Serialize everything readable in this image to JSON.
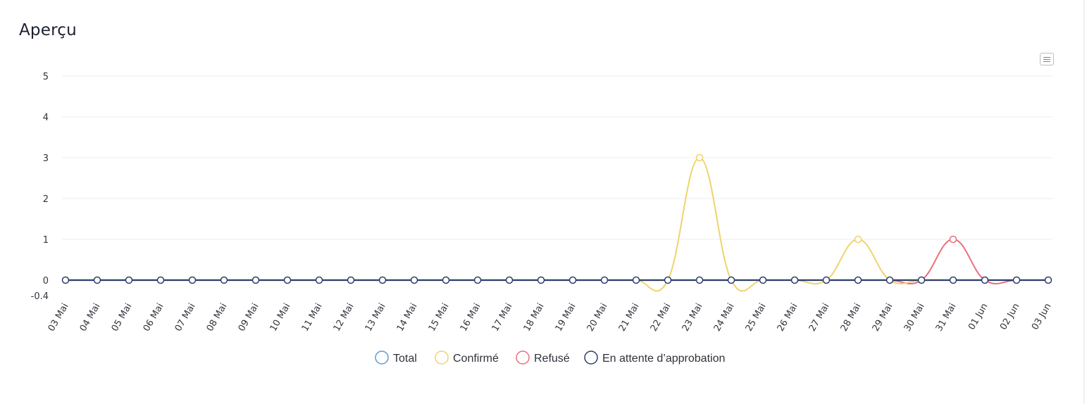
{
  "header": {
    "title": "Aperçu",
    "menu_icon": "hamburger-menu-icon"
  },
  "chart_data": {
    "type": "line",
    "smooth": true,
    "x": [
      "03 Mai",
      "04 Mai",
      "05 Mai",
      "06 Mai",
      "07 Mai",
      "08 Mai",
      "09 Mai",
      "10 Mai",
      "11 Mai",
      "12 Mai",
      "13 Mai",
      "14 Mai",
      "15 Mai",
      "16 Mai",
      "17 Mai",
      "18 Mai",
      "19 Mai",
      "20 Mai",
      "21 Mai",
      "22 Mai",
      "23 Mai",
      "24 Mai",
      "25 Mai",
      "26 Mai",
      "27 Mai",
      "28 Mai",
      "29 Mai",
      "30 Mai",
      "31 Mai",
      "01 Jun",
      "02 Jun",
      "03 Jun"
    ],
    "series": [
      {
        "name": "Total",
        "color": "#5b9bd5",
        "values": [
          0,
          0,
          0,
          0,
          0,
          0,
          0,
          0,
          0,
          0,
          0,
          0,
          0,
          0,
          0,
          0,
          0,
          0,
          0,
          0,
          0,
          0,
          0,
          0,
          0,
          0,
          0,
          0,
          0,
          0,
          0,
          0
        ]
      },
      {
        "name": "Confirmé",
        "color": "#f0d36a",
        "values": [
          0,
          0,
          0,
          0,
          0,
          0,
          0,
          0,
          0,
          0,
          0,
          0,
          0,
          0,
          0,
          0,
          0,
          0,
          0,
          0,
          3,
          0,
          0,
          0,
          0,
          1,
          0,
          0,
          0,
          0,
          0,
          0
        ]
      },
      {
        "name": "Refusé",
        "color": "#e8707b",
        "values": [
          0,
          0,
          0,
          0,
          0,
          0,
          0,
          0,
          0,
          0,
          0,
          0,
          0,
          0,
          0,
          0,
          0,
          0,
          0,
          0,
          0,
          0,
          0,
          0,
          0,
          0,
          0,
          0,
          1,
          0,
          0,
          0
        ]
      },
      {
        "name": "En attente d’approbation",
        "color": "#2b3e6b",
        "values": [
          0,
          0,
          0,
          0,
          0,
          0,
          0,
          0,
          0,
          0,
          0,
          0,
          0,
          0,
          0,
          0,
          0,
          0,
          0,
          0,
          0,
          0,
          0,
          0,
          0,
          0,
          0,
          0,
          0,
          0,
          0,
          0
        ]
      }
    ],
    "ylim": [
      -0.4,
      5
    ],
    "y_ticks": [
      "5",
      "4",
      "3",
      "2",
      "1",
      "0",
      "-0.4"
    ],
    "grid": true,
    "legend_position": "bottom-center"
  }
}
